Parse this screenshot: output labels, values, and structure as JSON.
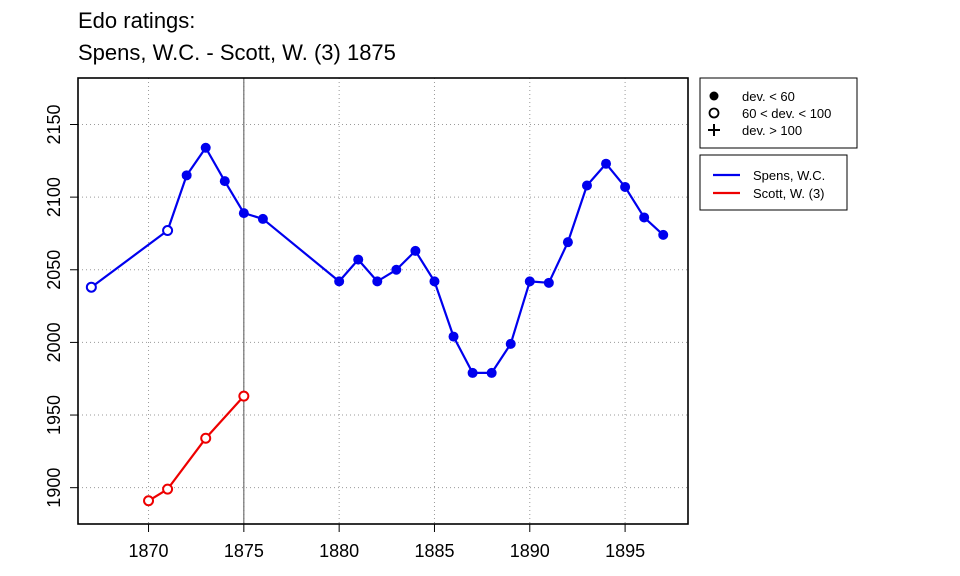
{
  "title_line1": "Edo ratings:",
  "title_line2": "Spens, W.C. - Scott, W. (3) 1875",
  "chart_data": {
    "type": "line",
    "xlim": [
      1866.3,
      1898.3
    ],
    "ylim": [
      1875,
      2182
    ],
    "x_ticks": [
      1870,
      1875,
      1880,
      1885,
      1890,
      1895
    ],
    "y_ticks": [
      1900,
      1950,
      2000,
      2050,
      2100,
      2150
    ],
    "grid": "dotted",
    "vertical_marker_x": 1875,
    "series": [
      {
        "name": "Spens, W.C.",
        "color": "#0000ee",
        "points": [
          {
            "x": 1867,
            "y": 2038,
            "marker": "open"
          },
          {
            "x": 1871,
            "y": 2077,
            "marker": "open"
          },
          {
            "x": 1872,
            "y": 2115,
            "marker": "filled"
          },
          {
            "x": 1873,
            "y": 2134,
            "marker": "filled"
          },
          {
            "x": 1874,
            "y": 2111,
            "marker": "filled"
          },
          {
            "x": 1875,
            "y": 2089,
            "marker": "filled"
          },
          {
            "x": 1876,
            "y": 2085,
            "marker": "filled"
          },
          {
            "x": 1880,
            "y": 2042,
            "marker": "filled"
          },
          {
            "x": 1881,
            "y": 2057,
            "marker": "filled"
          },
          {
            "x": 1882,
            "y": 2042,
            "marker": "filled"
          },
          {
            "x": 1883,
            "y": 2050,
            "marker": "filled"
          },
          {
            "x": 1884,
            "y": 2063,
            "marker": "filled"
          },
          {
            "x": 1885,
            "y": 2042,
            "marker": "filled"
          },
          {
            "x": 1886,
            "y": 2004,
            "marker": "filled"
          },
          {
            "x": 1887,
            "y": 1979,
            "marker": "filled"
          },
          {
            "x": 1888,
            "y": 1979,
            "marker": "filled"
          },
          {
            "x": 1889,
            "y": 1999,
            "marker": "filled"
          },
          {
            "x": 1890,
            "y": 2042,
            "marker": "filled"
          },
          {
            "x": 1891,
            "y": 2041,
            "marker": "filled"
          },
          {
            "x": 1892,
            "y": 2069,
            "marker": "filled"
          },
          {
            "x": 1893,
            "y": 2108,
            "marker": "filled"
          },
          {
            "x": 1894,
            "y": 2123,
            "marker": "filled"
          },
          {
            "x": 1895,
            "y": 2107,
            "marker": "filled"
          },
          {
            "x": 1896,
            "y": 2086,
            "marker": "filled"
          },
          {
            "x": 1897,
            "y": 2074,
            "marker": "filled"
          }
        ]
      },
      {
        "name": "Scott, W. (3)",
        "color": "#ee0000",
        "points": [
          {
            "x": 1870,
            "y": 1891,
            "marker": "open"
          },
          {
            "x": 1871,
            "y": 1899,
            "marker": "open"
          },
          {
            "x": 1873,
            "y": 1934,
            "marker": "open"
          },
          {
            "x": 1875,
            "y": 1963,
            "marker": "open"
          }
        ]
      }
    ],
    "marker_legend": [
      {
        "symbol": "filled",
        "label": "dev. < 60"
      },
      {
        "symbol": "open",
        "label": "60 < dev. < 100"
      },
      {
        "symbol": "plus",
        "label": "dev. > 100"
      }
    ],
    "legend_position": "right"
  }
}
